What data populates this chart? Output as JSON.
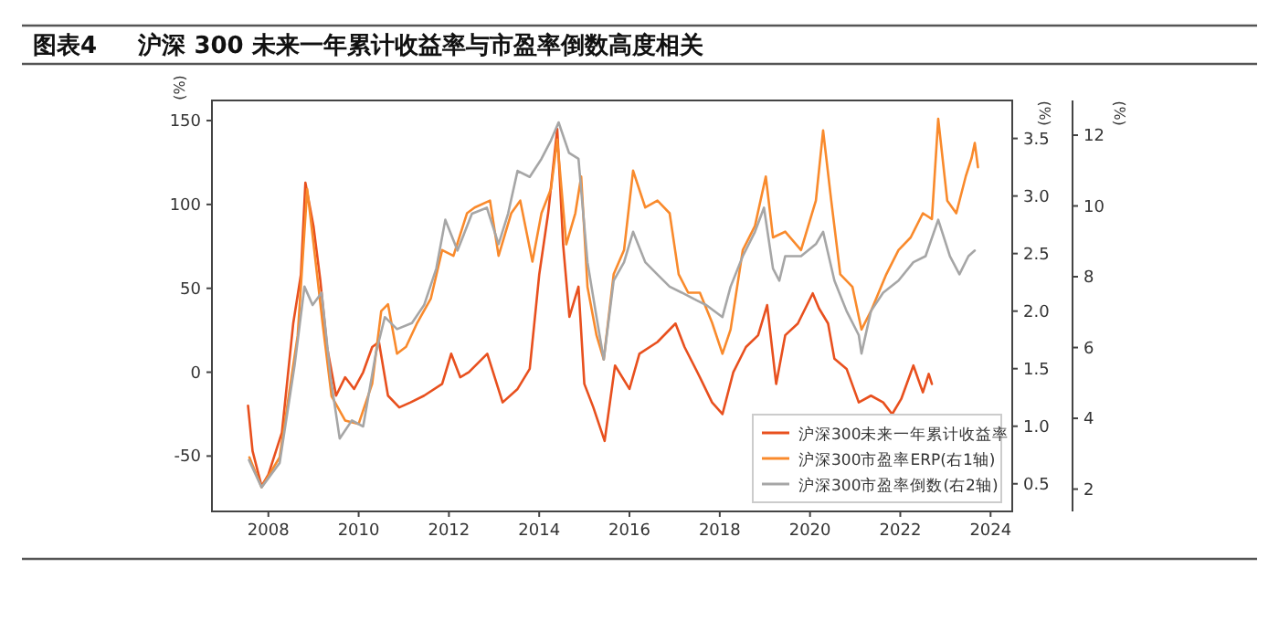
{
  "chart_data": {
    "type": "line",
    "title": "图表4     沪深 300 未来一年累计收益率与市盈率倒数高度相关",
    "ylabel": "(%)",
    "y2label": "(%)",
    "y3label": "(%)",
    "xlim": [
      2006.75,
      2024.48
    ],
    "xticks": [
      2008,
      2010,
      2012,
      2014,
      2016,
      2018,
      2020,
      2022,
      2024
    ],
    "ylim": [
      -83,
      162
    ],
    "yticks": [
      -50,
      0,
      50,
      100,
      150
    ],
    "y2lim": [
      0.26,
      3.83
    ],
    "y2ticks": [
      0.5,
      {
        "value": 1,
        "label": "1.0"
      },
      1.5,
      {
        "value": 2,
        "label": "2.0"
      },
      2.5,
      {
        "value": 3,
        "label": "3.0"
      },
      3.5
    ],
    "y3lim": [
      1.37,
      12.98
    ],
    "y3ticks": [
      2,
      4,
      6,
      8,
      10,
      12
    ],
    "legend": "bottom right",
    "grid": false,
    "series": [
      {
        "name": "沪深300未来一年累计收益率",
        "color": "#e8501e",
        "axis": "y",
        "x": [
          2007.55,
          2007.65,
          2007.85,
          2008.0,
          2008.3,
          2008.55,
          2008.72,
          2008.82,
          2009.0,
          2009.15,
          2009.3,
          2009.5,
          2009.7,
          2009.9,
          2010.1,
          2010.3,
          2010.45,
          2010.65,
          2010.9,
          2011.15,
          2011.45,
          2011.85,
          2012.05,
          2012.25,
          2012.44,
          2012.85,
          2013.19,
          2013.52,
          2013.79,
          2014.0,
          2014.2,
          2014.4,
          2014.53,
          2014.67,
          2014.87,
          2015.0,
          2015.2,
          2015.45,
          2015.68,
          2016.0,
          2016.22,
          2016.62,
          2017.02,
          2017.22,
          2017.56,
          2017.83,
          2018.06,
          2018.3,
          2018.58,
          2018.85,
          2019.05,
          2019.25,
          2019.45,
          2019.73,
          2020.06,
          2020.2,
          2020.4,
          2020.54,
          2020.81,
          2021.08,
          2021.35,
          2021.62,
          2021.82,
          2022.02,
          2022.29,
          2022.5,
          2022.63,
          2022.7
        ],
        "values": [
          -20,
          -47,
          -68,
          -61,
          -36,
          29,
          58,
          113,
          87,
          55,
          15,
          -14,
          -3,
          -10,
          0,
          15,
          18,
          -14,
          -21,
          -18,
          -14,
          -7,
          11,
          -3,
          0,
          11,
          -18,
          -10,
          2,
          58,
          95,
          145,
          76,
          33,
          51,
          -7,
          -21,
          -41,
          4,
          -10,
          11,
          18,
          29,
          15,
          -3,
          -18,
          -25,
          0,
          15,
          22,
          40,
          -7,
          22,
          29,
          47,
          38,
          29,
          8,
          2,
          -18,
          -14,
          -18,
          -25,
          -16,
          4,
          -12,
          -1,
          -7
        ]
      },
      {
        "name": "沪深300市盈率ERP(右1轴)",
        "color": "#f98a2c",
        "axis": "y2",
        "x": [
          2007.58,
          2007.85,
          2008.25,
          2008.65,
          2008.86,
          2009.0,
          2009.2,
          2009.4,
          2009.7,
          2010.0,
          2010.3,
          2010.5,
          2010.65,
          2010.85,
          2011.05,
          2011.3,
          2011.6,
          2011.85,
          2012.1,
          2012.4,
          2012.57,
          2012.91,
          2013.1,
          2013.38,
          2013.58,
          2013.85,
          2014.05,
          2014.26,
          2014.4,
          2014.6,
          2014.8,
          2014.93,
          2015.07,
          2015.27,
          2015.43,
          2015.65,
          2015.88,
          2016.08,
          2016.35,
          2016.62,
          2016.89,
          2017.09,
          2017.3,
          2017.56,
          2017.83,
          2018.06,
          2018.24,
          2018.51,
          2018.78,
          2019.02,
          2019.18,
          2019.45,
          2019.8,
          2020.13,
          2020.29,
          2020.47,
          2020.67,
          2020.94,
          2021.14,
          2021.35,
          2021.69,
          2021.96,
          2022.23,
          2022.5,
          2022.7,
          2022.84,
          2023.04,
          2023.24,
          2023.45,
          2023.58,
          2023.65,
          2023.72
        ],
        "values": [
          0.73,
          0.47,
          0.73,
          1.79,
          3.06,
          2.59,
          1.9,
          1.26,
          1.05,
          1.02,
          1.37,
          2.0,
          2.06,
          1.63,
          1.69,
          1.9,
          2.11,
          2.53,
          2.48,
          2.85,
          2.9,
          2.96,
          2.48,
          2.85,
          2.96,
          2.43,
          2.85,
          3.06,
          3.49,
          2.58,
          2.85,
          3.17,
          2.21,
          1.79,
          1.58,
          2.32,
          2.53,
          3.22,
          2.9,
          2.96,
          2.85,
          2.32,
          2.16,
          2.16,
          1.9,
          1.63,
          1.84,
          2.53,
          2.74,
          3.17,
          2.64,
          2.69,
          2.53,
          2.96,
          3.57,
          2.96,
          2.32,
          2.21,
          1.84,
          2.0,
          2.32,
          2.53,
          2.64,
          2.85,
          2.8,
          3.67,
          2.96,
          2.85,
          3.17,
          3.33,
          3.46,
          3.25
        ]
      },
      {
        "name": "沪深300市盈率倒数(右2轴)",
        "color": "#a6a6a6",
        "axis": "y3",
        "x": [
          2007.57,
          2007.85,
          2008.25,
          2008.58,
          2008.8,
          2008.98,
          2009.18,
          2009.38,
          2009.58,
          2009.85,
          2010.1,
          2010.38,
          2010.58,
          2010.85,
          2011.18,
          2011.45,
          2011.72,
          2011.92,
          2012.19,
          2012.51,
          2012.84,
          2013.1,
          2013.31,
          2013.52,
          2013.79,
          2014.05,
          2014.26,
          2014.43,
          2014.66,
          2014.87,
          2015.07,
          2015.27,
          2015.43,
          2015.65,
          2015.88,
          2016.08,
          2016.35,
          2016.62,
          2016.89,
          2017.16,
          2017.43,
          2017.7,
          2018.06,
          2018.24,
          2018.51,
          2018.78,
          2018.98,
          2019.18,
          2019.32,
          2019.45,
          2019.8,
          2020.13,
          2020.29,
          2020.54,
          2020.81,
          2021.08,
          2021.14,
          2021.35,
          2021.62,
          2021.96,
          2022.29,
          2022.56,
          2022.84,
          2023.1,
          2023.31,
          2023.51,
          2023.65
        ],
        "values": [
          2.82,
          2.05,
          2.74,
          5.49,
          7.72,
          7.2,
          7.55,
          5.14,
          3.43,
          3.94,
          3.77,
          5.83,
          6.86,
          6.52,
          6.69,
          7.2,
          8.23,
          9.61,
          8.74,
          9.78,
          9.95,
          8.92,
          9.78,
          10.99,
          10.82,
          11.33,
          11.85,
          12.36,
          11.5,
          11.33,
          8.41,
          6.86,
          5.66,
          7.89,
          8.41,
          9.27,
          8.41,
          8.06,
          7.72,
          7.55,
          7.37,
          7.2,
          6.86,
          7.72,
          8.58,
          9.27,
          9.95,
          8.23,
          7.89,
          8.58,
          8.58,
          8.92,
          9.27,
          7.89,
          7.03,
          6.35,
          5.83,
          7.03,
          7.55,
          7.89,
          8.41,
          8.58,
          9.61,
          8.58,
          8.07,
          8.58,
          8.74
        ]
      }
    ]
  }
}
